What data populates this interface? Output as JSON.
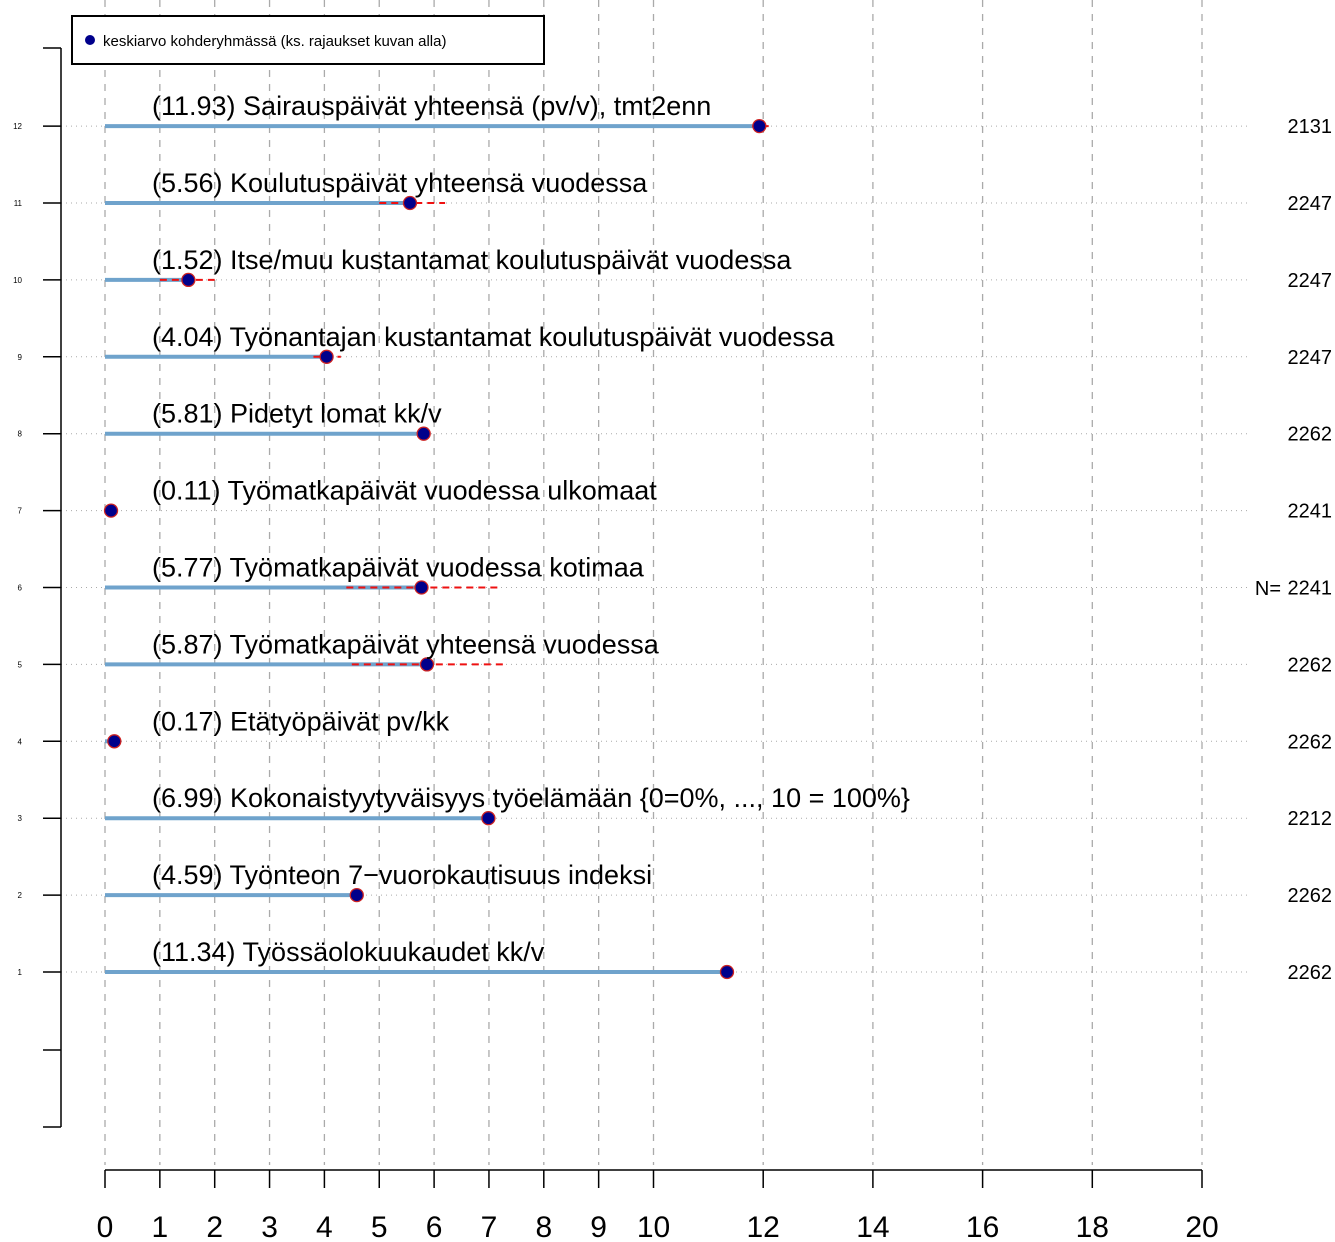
{
  "chart_data": {
    "type": "dot",
    "legend": {
      "label": "keskiarvo kohderyhmässä (ks. rajaukset kuvan alla)",
      "position": "top-left"
    },
    "n_label": "N=",
    "xlim": [
      0,
      20
    ],
    "x_ticks": [
      0,
      1,
      2,
      3,
      4,
      5,
      6,
      7,
      8,
      9,
      10,
      12,
      14,
      16,
      18,
      20
    ],
    "y_ticks": [
      1,
      2,
      3,
      4,
      5,
      6,
      7,
      8,
      9,
      10,
      11,
      12
    ],
    "grid": true,
    "items": [
      {
        "row": 12,
        "label": "(11.93) Sairauspäivät yhteensä (pv/v), tmt2enn",
        "value": 11.93,
        "ci": [
          11.8,
          12.1
        ],
        "n": "2131"
      },
      {
        "row": 11,
        "label": "(5.56) Koulutuspäivät yhteensä vuodessa",
        "value": 5.56,
        "ci": [
          5.0,
          6.2
        ],
        "n": "2247"
      },
      {
        "row": 10,
        "label": "(1.52) Itse/muu kustantamat koulutuspäivät vuodessa",
        "value": 1.52,
        "ci": [
          1.0,
          2.0
        ],
        "n": "2247"
      },
      {
        "row": 9,
        "label": "(4.04) Työnantajan kustantamat koulutuspäivät vuodessa",
        "value": 4.04,
        "ci": [
          3.8,
          4.3
        ],
        "n": "2247"
      },
      {
        "row": 8,
        "label": "(5.81) Pidetyt lomat kk/v",
        "value": 5.81,
        "ci": [
          5.75,
          5.87
        ],
        "n": "2262"
      },
      {
        "row": 7,
        "label": "(0.11) Työmatkapäivät vuodessa ulkomaat",
        "value": 0.11,
        "ci": [
          0.05,
          0.17
        ],
        "n": "2241"
      },
      {
        "row": 6,
        "label": "(5.77) Työmatkapäivät vuodessa kotimaa",
        "value": 5.77,
        "ci": [
          4.4,
          7.2
        ],
        "n": "2241"
      },
      {
        "row": 5,
        "label": "(5.87) Työmatkapäivät yhteensä vuodessa",
        "value": 5.87,
        "ci": [
          4.5,
          7.3
        ],
        "n": "2262"
      },
      {
        "row": 4,
        "label": "(0.17) Etätyöpäivät pv/kk",
        "value": 0.17,
        "ci": [
          0.12,
          0.22
        ],
        "n": "2262"
      },
      {
        "row": 3,
        "label": "(6.99) Kokonaistyytyväisyys työelämään {0=0%, ..., 10 = 100%}",
        "value": 6.99,
        "ci": [
          6.95,
          7.03
        ],
        "n": "2212"
      },
      {
        "row": 2,
        "label": "(4.59) Työnteon 7−vuorokautisuus indeksi",
        "value": 4.59,
        "ci": [
          4.55,
          4.63
        ],
        "n": "2262"
      },
      {
        "row": 1,
        "label": "(11.34) Työssäolokuukaudet kk/v",
        "value": 11.34,
        "ci": [
          11.3,
          11.4
        ],
        "n": "2262"
      }
    ],
    "colors": {
      "bar": "#6fa3cc",
      "dot_fill": "#00008b",
      "dot_stroke": "#cc2222",
      "ci": "#ee1111",
      "n_label": "#006400",
      "grid": "#aaaaaa"
    }
  }
}
